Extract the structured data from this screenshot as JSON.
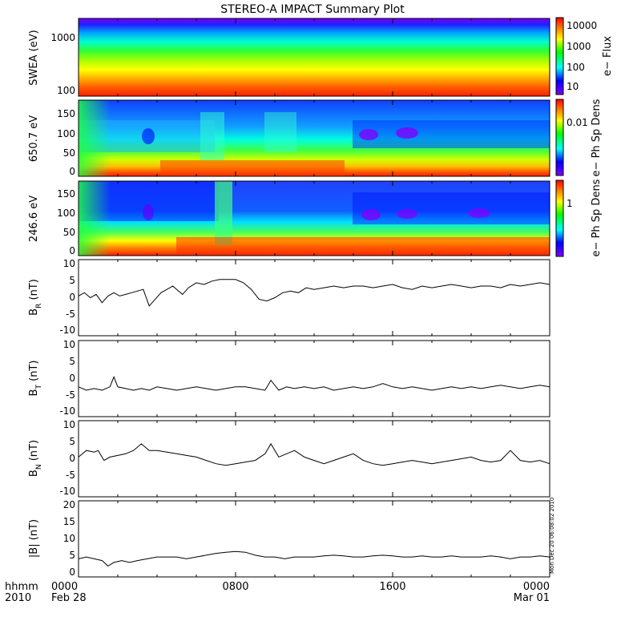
{
  "chart_data": {
    "title": "STEREO-A IMPACT Summary Plot",
    "x_axis": {
      "row_labels": [
        "hhmm",
        "2010"
      ],
      "ticks": [
        {
          "top": "0000",
          "bottom": "Feb 28",
          "hour": 0
        },
        {
          "top": "0800",
          "bottom": "",
          "hour": 8
        },
        {
          "top": "1600",
          "bottom": "",
          "hour": 16
        },
        {
          "top": "0000",
          "bottom": "Mar 01",
          "hour": 24
        }
      ],
      "range_hours": [
        0,
        24
      ]
    },
    "timestamp": "Mon Dec 20 06:08:02 2010",
    "panels": [
      {
        "type": "heatmap",
        "ylabel": "SWEA (eV)",
        "yscale": "log",
        "ylim": [
          90,
          2000
        ],
        "yticks": [
          "100",
          "1000"
        ],
        "colorbar_label": "e− Flux",
        "colorbar_scale": "log",
        "colorbar_ticks": [
          "10",
          "100",
          "1000",
          "10000"
        ]
      },
      {
        "type": "heatmap",
        "ylabel": "650.7 eV",
        "ylim": [
          -10,
          180
        ],
        "yticks": [
          "0",
          "50",
          "100",
          "150"
        ],
        "colorbar_label": "e− Ph Sp Dens",
        "colorbar_ticks": [
          "0.01"
        ]
      },
      {
        "type": "heatmap",
        "ylabel": "246.6 eV",
        "ylim": [
          -10,
          180
        ],
        "yticks": [
          "0",
          "50",
          "100",
          "150"
        ],
        "colorbar_label": "e− Ph Sp Dens",
        "colorbar_ticks": [
          "1"
        ]
      },
      {
        "type": "line",
        "ylabel_main": "B",
        "ylabel_sub": "R",
        "ylabel_unit": " (nT)",
        "ylim": [
          -12,
          11
        ],
        "yticks": [
          "-10",
          "-5",
          "0",
          "5",
          "10"
        ],
        "x": [
          0,
          0.3,
          0.6,
          0.9,
          1.2,
          1.5,
          1.8,
          2.1,
          2.4,
          2.7,
          3.0,
          3.3,
          3.6,
          3.9,
          4.2,
          4.5,
          4.8,
          5.0,
          5.3,
          5.6,
          6.0,
          6.4,
          6.8,
          7.2,
          7.6,
          8.0,
          8.4,
          8.8,
          9.2,
          9.6,
          10.0,
          10.4,
          10.8,
          11.2,
          11.6,
          12.0,
          12.5,
          13.0,
          13.5,
          14.0,
          14.5,
          15.0,
          15.5,
          16.0,
          16.5,
          17.0,
          17.5,
          18.0,
          18.5,
          19.0,
          19.5,
          20.0,
          20.5,
          21.0,
          21.5,
          22.0,
          22.5,
          23.0,
          23.5,
          24.0
        ],
        "values": [
          0,
          1,
          -0.5,
          0.5,
          -2,
          0,
          1,
          0,
          0.5,
          1,
          1.5,
          2,
          -3,
          -1,
          1,
          2,
          3,
          2,
          0.5,
          2.5,
          4,
          3.5,
          4.5,
          5,
          5,
          5,
          4,
          2,
          -1,
          -1.5,
          -0.5,
          1,
          1.5,
          1,
          2.5,
          2,
          2.5,
          3,
          2.5,
          3,
          3,
          2.5,
          3,
          3.5,
          2.5,
          2,
          3,
          2.5,
          3,
          3.5,
          3,
          2.5,
          3,
          3,
          2.5,
          3.5,
          3,
          3.5,
          4,
          3.5
        ]
      },
      {
        "type": "line",
        "ylabel_main": "B",
        "ylabel_sub": "T",
        "ylabel_unit": " (nT)",
        "ylim": [
          -12,
          11
        ],
        "yticks": [
          "-10",
          "-5",
          "0",
          "5",
          "10"
        ],
        "x": [
          0,
          0.4,
          0.8,
          1.2,
          1.6,
          1.8,
          2.0,
          2.4,
          2.8,
          3.2,
          3.6,
          4.0,
          4.5,
          5.0,
          5.5,
          6.0,
          6.5,
          7.0,
          7.5,
          8.0,
          8.5,
          9.0,
          9.5,
          9.8,
          10.2,
          10.6,
          11.0,
          11.5,
          12.0,
          12.5,
          13.0,
          13.5,
          14.0,
          14.5,
          15.0,
          15.5,
          16.0,
          16.5,
          17.0,
          17.5,
          18.0,
          18.5,
          19.0,
          19.5,
          20.0,
          20.5,
          21.0,
          21.5,
          22.0,
          22.5,
          23.0,
          23.5,
          24.0
        ],
        "values": [
          -3,
          -4,
          -3.5,
          -4,
          -3,
          0,
          -3,
          -3.5,
          -4,
          -3.5,
          -4,
          -3,
          -3.5,
          -4,
          -3.5,
          -3,
          -3.5,
          -4,
          -3.5,
          -3,
          -3,
          -3.5,
          -4,
          -1,
          -4,
          -3,
          -3.5,
          -3,
          -3.5,
          -3,
          -4,
          -3.5,
          -3,
          -3.5,
          -3,
          -2,
          -3,
          -3.5,
          -3,
          -3.5,
          -4,
          -3.5,
          -3,
          -3.5,
          -3,
          -3.5,
          -3,
          -2.5,
          -3,
          -3.5,
          -3,
          -2.5,
          -3
        ]
      },
      {
        "type": "line",
        "ylabel_main": "B",
        "ylabel_sub": "N",
        "ylabel_unit": " (nT)",
        "ylim": [
          -12,
          11
        ],
        "yticks": [
          "-10",
          "-5",
          "0",
          "5",
          "10"
        ],
        "x": [
          0,
          0.4,
          0.8,
          1.0,
          1.3,
          1.6,
          2.0,
          2.4,
          2.8,
          3.2,
          3.6,
          4.0,
          4.5,
          5.0,
          5.5,
          6.0,
          6.5,
          7.0,
          7.5,
          8.0,
          8.5,
          9.0,
          9.5,
          9.8,
          10.2,
          10.6,
          11.0,
          11.5,
          12.0,
          12.5,
          13.0,
          13.5,
          14.0,
          14.5,
          15.0,
          15.5,
          16.0,
          16.5,
          17.0,
          17.5,
          18.0,
          18.5,
          19.0,
          19.5,
          20.0,
          20.5,
          21.0,
          21.5,
          22.0,
          22.5,
          23.0,
          23.5,
          24.0
        ],
        "values": [
          0,
          2,
          1.5,
          2,
          -1,
          0,
          0.5,
          1,
          2,
          4,
          2,
          2,
          1.5,
          1,
          0.5,
          0,
          -1,
          -2,
          -2.5,
          -2,
          -1.5,
          -1,
          1,
          4,
          0,
          1,
          2,
          0,
          -1,
          -2,
          -1,
          0,
          1,
          -1,
          -2,
          -2.5,
          -2,
          -1.5,
          -1,
          -1.5,
          -2,
          -1.5,
          -1,
          -0.5,
          0,
          -1,
          -1.5,
          -1,
          2,
          -1,
          -1.5,
          -1,
          -2
        ]
      },
      {
        "type": "line",
        "ylabel_main": "|B|",
        "ylabel_sub": "",
        "ylabel_unit": " (nT)",
        "ylim": [
          -1,
          20
        ],
        "yticks": [
          "0",
          "5",
          "10",
          "15",
          "20"
        ],
        "x": [
          0,
          0.4,
          0.8,
          1.2,
          1.5,
          1.8,
          2.2,
          2.6,
          3.0,
          3.5,
          4.0,
          4.5,
          5.0,
          5.5,
          6.0,
          6.5,
          7.0,
          7.5,
          8.0,
          8.5,
          9.0,
          9.5,
          10.0,
          10.5,
          11.0,
          11.5,
          12.0,
          12.5,
          13.0,
          13.5,
          14.0,
          14.5,
          15.0,
          15.5,
          16.0,
          16.5,
          17.0,
          17.5,
          18.0,
          18.5,
          19.0,
          19.5,
          20.0,
          20.5,
          21.0,
          21.5,
          22.0,
          22.5,
          23.0,
          23.5,
          24.0
        ],
        "values": [
          4,
          4.5,
          4,
          3.5,
          2,
          3,
          3.5,
          3,
          3.5,
          4,
          4.5,
          4.5,
          4.5,
          4,
          4.5,
          5,
          5.5,
          5.8,
          6,
          5.8,
          5,
          4.5,
          4.5,
          4,
          4.5,
          4.5,
          4.5,
          4.8,
          5,
          4.8,
          4.5,
          4.5,
          4.8,
          5,
          4.8,
          4.5,
          4.5,
          4.8,
          4.5,
          4.5,
          4.8,
          4.5,
          4.5,
          4.5,
          4.8,
          4.5,
          4,
          4.5,
          4.5,
          4.8,
          4.5
        ]
      }
    ]
  }
}
